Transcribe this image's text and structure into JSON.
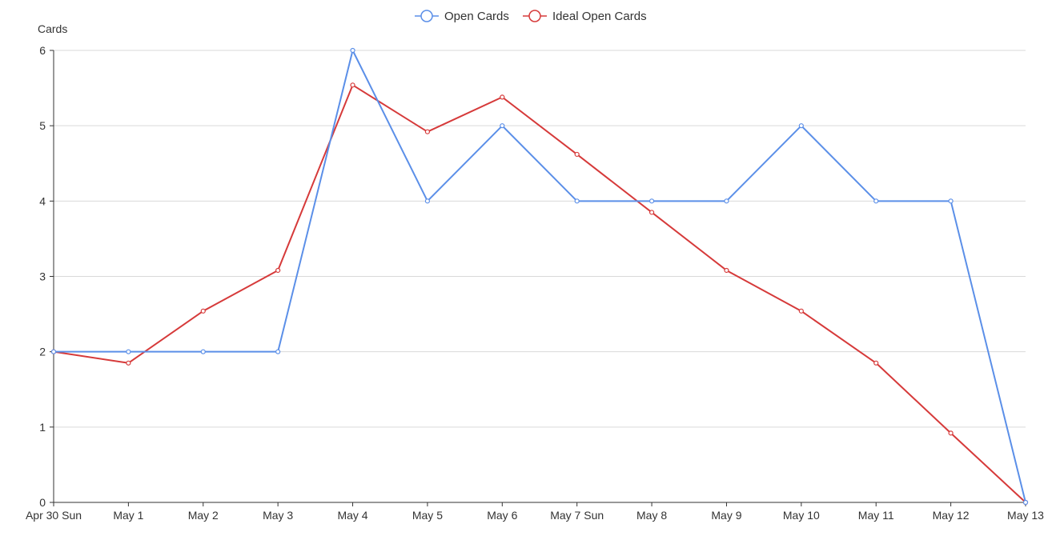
{
  "chart_data": {
    "type": "line",
    "title": "",
    "xlabel": "",
    "ylabel": "Cards",
    "ylim": [
      0,
      6
    ],
    "y_ticks": [
      0,
      1,
      2,
      3,
      4,
      5,
      6
    ],
    "grid": true,
    "legend_position": "top-center",
    "categories": [
      "Apr 30 Sun",
      "May 1",
      "May 2",
      "May 3",
      "May 4",
      "May 5",
      "May 6",
      "May 7 Sun",
      "May 8",
      "May 9",
      "May 10",
      "May 11",
      "May 12",
      "May 13"
    ],
    "series": [
      {
        "name": "Open Cards",
        "color": "#5b8fe8",
        "values": [
          2,
          2,
          2,
          2,
          6,
          4,
          5,
          4,
          4,
          4,
          5,
          4,
          4,
          0
        ]
      },
      {
        "name": "Ideal Open Cards",
        "color": "#d63a3a",
        "values": [
          2,
          1.85,
          2.54,
          3.08,
          5.54,
          4.92,
          5.38,
          4.62,
          3.85,
          3.08,
          2.54,
          1.85,
          0.92,
          0
        ]
      }
    ]
  }
}
